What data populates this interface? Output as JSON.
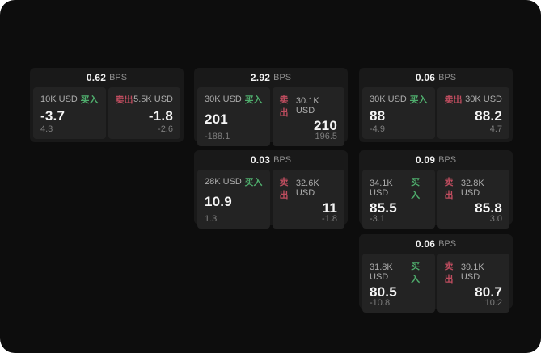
{
  "ui": {
    "bps_unit": "BPS",
    "buy_label": "买入",
    "sell_label": "卖出"
  },
  "colors": {
    "background": "#0d0d0d",
    "card": "#191919",
    "panel": "#232323",
    "buy_green": "#4fae6d",
    "sell_red": "#bf4d5f",
    "value_white": "#f5f5f5",
    "label_gray": "#adadad",
    "sub_gray": "#7e7e7e"
  },
  "cards": [
    {
      "bps": "0.62",
      "buy": {
        "amount": "10K USD",
        "value": "-3.7",
        "sub": "4.3"
      },
      "sell": {
        "amount": "5.5K USD",
        "value": "-1.8",
        "sub": "-2.6"
      }
    },
    {
      "bps": "2.92",
      "buy": {
        "amount": "30K USD",
        "value": "201",
        "sub": "-188.1"
      },
      "sell": {
        "amount": "30.1K USD",
        "value": "210",
        "sub": "196.5"
      }
    },
    {
      "bps": "0.06",
      "buy": {
        "amount": "30K USD",
        "value": "88",
        "sub": "-4.9"
      },
      "sell": {
        "amount": "30K USD",
        "value": "88.2",
        "sub": "4.7"
      }
    },
    {
      "bps": "0.03",
      "buy": {
        "amount": "28K USD",
        "value": "10.9",
        "sub": "1.3"
      },
      "sell": {
        "amount": "32.6K USD",
        "value": "11",
        "sub": "-1.8"
      }
    },
    {
      "bps": "0.09",
      "buy": {
        "amount": "34.1K USD",
        "value": "85.5",
        "sub": "-3.1"
      },
      "sell": {
        "amount": "32.8K USD",
        "value": "85.8",
        "sub": "3.0"
      }
    },
    {
      "bps": "0.06",
      "buy": {
        "amount": "31.8K USD",
        "value": "80.5",
        "sub": "-10.8"
      },
      "sell": {
        "amount": "39.1K USD",
        "value": "80.7",
        "sub": "10.2"
      }
    }
  ]
}
